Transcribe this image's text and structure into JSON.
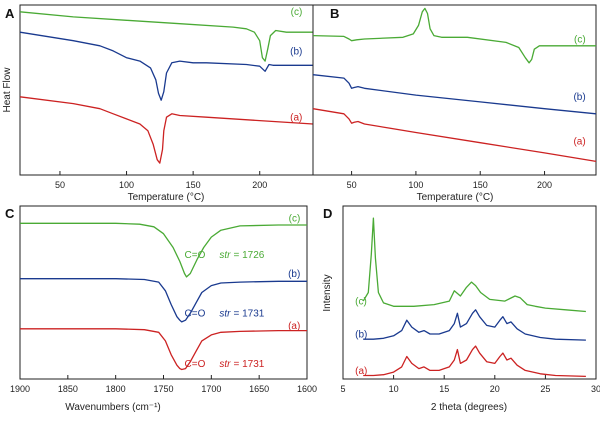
{
  "colors": {
    "a": "#cc2222",
    "b": "#1a3a8f",
    "c": "#4aaa35",
    "axis": "#222222"
  },
  "chart_data": [
    {
      "id": "A",
      "panel_label": "A",
      "type": "line",
      "xlabel": "Temperature (°C)",
      "ylabel": "Heat Flow",
      "xlim": [
        20,
        240
      ],
      "ylim": [
        0,
        10
      ],
      "xticks": [
        50,
        100,
        150,
        200
      ],
      "tick_labels": [
        "50",
        "100",
        "150",
        "200"
      ],
      "series": [
        {
          "name": "(c)",
          "color": "#4aaa35",
          "label_pos": [
            232,
            9.4
          ],
          "x": [
            20,
            60,
            100,
            140,
            180,
            190,
            196,
            200,
            202,
            204,
            206,
            208,
            212,
            220,
            240
          ],
          "y": [
            9.6,
            9.3,
            9.1,
            8.9,
            8.7,
            8.6,
            8.4,
            7.9,
            6.9,
            6.7,
            7.4,
            8.2,
            8.5,
            8.4,
            8.4
          ]
        },
        {
          "name": "(b)",
          "color": "#1a3a8f",
          "label_pos": [
            232,
            7.1
          ],
          "x": [
            20,
            60,
            80,
            90,
            100,
            110,
            118,
            122,
            124,
            126,
            128,
            130,
            134,
            140,
            150,
            160,
            190,
            200,
            204,
            207,
            210,
            220,
            240
          ],
          "y": [
            8.4,
            7.9,
            7.6,
            7.3,
            6.9,
            6.7,
            6.3,
            5.6,
            4.8,
            4.4,
            4.9,
            6.0,
            6.6,
            6.7,
            6.6,
            6.6,
            6.5,
            6.4,
            6.1,
            6.5,
            6.45,
            6.45,
            6.45
          ]
        },
        {
          "name": "(a)",
          "color": "#cc2222",
          "label_pos": [
            232,
            3.2
          ],
          "x": [
            20,
            60,
            80,
            90,
            100,
            110,
            116,
            120,
            123,
            125,
            127,
            128,
            130,
            134,
            140,
            160,
            200,
            240
          ],
          "y": [
            4.6,
            4.2,
            3.9,
            3.6,
            3.3,
            3.0,
            2.6,
            1.8,
            0.9,
            0.7,
            1.5,
            2.6,
            3.4,
            3.6,
            3.5,
            3.4,
            3.2,
            3.0
          ]
        }
      ]
    },
    {
      "id": "B",
      "panel_label": "B",
      "type": "line",
      "xlabel": "Temperature (°C)",
      "ylabel": "",
      "xlim": [
        20,
        240
      ],
      "ylim": [
        0,
        10
      ],
      "xticks": [
        50,
        100,
        150,
        200
      ],
      "tick_labels": [
        "50",
        "100",
        "150",
        "200"
      ],
      "series": [
        {
          "name": "(c)",
          "color": "#4aaa35",
          "label_pos": [
            232,
            7.8
          ],
          "x": [
            20,
            44,
            48,
            50,
            54,
            60,
            90,
            98,
            102,
            105,
            107,
            109,
            111,
            114,
            120,
            140,
            170,
            180,
            185,
            188,
            190,
            192,
            196,
            210,
            240
          ],
          "y": [
            8.2,
            8.15,
            8.0,
            7.9,
            7.95,
            8.0,
            8.1,
            8.3,
            8.8,
            9.6,
            9.8,
            9.5,
            8.6,
            8.2,
            8.1,
            8.1,
            7.8,
            7.5,
            6.9,
            6.6,
            6.8,
            7.4,
            7.6,
            7.6,
            7.6
          ]
        },
        {
          "name": "(b)",
          "color": "#1a3a8f",
          "label_pos": [
            232,
            4.4
          ],
          "x": [
            20,
            44,
            48,
            50,
            52,
            55,
            60,
            100,
            150,
            200,
            240
          ],
          "y": [
            5.9,
            5.7,
            5.4,
            5.1,
            5.15,
            5.2,
            5.1,
            4.7,
            4.3,
            3.9,
            3.6
          ]
        },
        {
          "name": "(a)",
          "color": "#cc2222",
          "label_pos": [
            232,
            1.8
          ],
          "x": [
            20,
            44,
            48,
            50,
            52,
            55,
            60,
            100,
            150,
            200,
            240
          ],
          "y": [
            3.9,
            3.6,
            3.3,
            3.05,
            3.1,
            3.15,
            3.0,
            2.5,
            1.9,
            1.3,
            0.8
          ]
        }
      ]
    },
    {
      "id": "C",
      "panel_label": "C",
      "type": "line",
      "xlabel": "Wavenumbers (cm⁻¹)",
      "ylabel": "",
      "xlim": [
        1900,
        1600
      ],
      "ylim": [
        0,
        10
      ],
      "xticks": [
        1900,
        1850,
        1800,
        1750,
        1700,
        1650,
        1600
      ],
      "tick_labels": [
        "1900",
        "1850",
        "1800",
        "1750",
        "1700",
        "1650",
        "1600"
      ],
      "series": [
        {
          "name": "(c)",
          "color": "#4aaa35",
          "label_pos": [
            1607,
            9.1
          ],
          "annotation": {
            "prefix": "C=O",
            "str": "str",
            "value": "= 1726",
            "pos": [
              1728,
              7.0
            ]
          },
          "x": [
            1900,
            1800,
            1775,
            1760,
            1750,
            1740,
            1733,
            1728,
            1726,
            1722,
            1715,
            1708,
            1700,
            1690,
            1670,
            1630,
            1600
          ],
          "y": [
            9.0,
            9.0,
            8.95,
            8.8,
            8.4,
            7.6,
            6.8,
            6.1,
            5.9,
            6.1,
            6.9,
            7.6,
            8.2,
            8.6,
            8.85,
            8.9,
            8.9
          ]
        },
        {
          "name": "(b)",
          "color": "#1a3a8f",
          "label_pos": [
            1607,
            5.9
          ],
          "annotation": {
            "prefix": "C=O",
            "str": "str",
            "value": "= 1731",
            "pos": [
              1728,
              3.6
            ]
          },
          "x": [
            1900,
            1800,
            1770,
            1755,
            1748,
            1742,
            1736,
            1733,
            1731,
            1727,
            1722,
            1716,
            1710,
            1700,
            1690,
            1670,
            1630,
            1600
          ],
          "y": [
            5.8,
            5.8,
            5.75,
            5.6,
            5.1,
            4.3,
            3.6,
            3.4,
            3.3,
            3.4,
            3.8,
            4.4,
            5.0,
            5.4,
            5.55,
            5.6,
            5.65,
            5.65
          ]
        },
        {
          "name": "(a)",
          "color": "#cc2222",
          "label_pos": [
            1607,
            2.9
          ],
          "annotation": {
            "prefix": "C=O",
            "str": "str",
            "value": "= 1731",
            "pos": [
              1728,
              0.7
            ]
          },
          "x": [
            1900,
            1800,
            1770,
            1755,
            1748,
            1742,
            1736,
            1733,
            1731,
            1727,
            1722,
            1716,
            1710,
            1700,
            1690,
            1670,
            1630,
            1600
          ],
          "y": [
            2.9,
            2.9,
            2.85,
            2.7,
            2.2,
            1.4,
            0.8,
            0.6,
            0.55,
            0.6,
            1.0,
            1.6,
            2.2,
            2.55,
            2.7,
            2.75,
            2.8,
            2.8
          ]
        }
      ]
    },
    {
      "id": "D",
      "panel_label": "D",
      "type": "line",
      "xlabel": "2 theta (degrees)",
      "ylabel": "Intensity",
      "xlim": [
        5,
        30
      ],
      "ylim": [
        0,
        10
      ],
      "xticks": [
        5,
        10,
        15,
        20,
        25,
        30
      ],
      "tick_labels": [
        "5",
        "10",
        "15",
        "20",
        "25",
        "30"
      ],
      "series": [
        {
          "name": "(c)",
          "color": "#4aaa35",
          "label_pos": [
            6.2,
            4.3
          ],
          "x": [
            7.0,
            7.5,
            7.8,
            8.0,
            8.2,
            8.5,
            9.0,
            10,
            12,
            14,
            15.5,
            16.0,
            16.6,
            17.2,
            17.7,
            18.1,
            18.6,
            19.5,
            21,
            22.0,
            22.5,
            23.2,
            24,
            25,
            27,
            29
          ],
          "y": [
            4.5,
            5.0,
            7.2,
            9.3,
            7.0,
            5.0,
            4.4,
            4.2,
            4.2,
            4.3,
            4.5,
            5.1,
            4.8,
            5.3,
            5.6,
            5.4,
            5.0,
            4.6,
            4.5,
            4.8,
            4.7,
            4.3,
            4.2,
            4.1,
            4.0,
            3.9
          ]
        },
        {
          "name": "(b)",
          "color": "#1a3a8f",
          "label_pos": [
            6.2,
            2.4
          ],
          "x": [
            7.0,
            8,
            9,
            10,
            10.8,
            11.3,
            11.8,
            12.5,
            13.0,
            13.6,
            14.5,
            15.5,
            16.0,
            16.3,
            16.6,
            17.2,
            17.8,
            18.1,
            18.5,
            19.2,
            20.0,
            20.5,
            20.8,
            21.2,
            21.6,
            22.2,
            23,
            24.5,
            26,
            29
          ],
          "y": [
            2.3,
            2.3,
            2.35,
            2.5,
            2.8,
            3.4,
            3.0,
            2.7,
            2.8,
            2.6,
            2.6,
            2.8,
            3.2,
            3.8,
            3.0,
            3.2,
            3.8,
            4.0,
            3.6,
            3.1,
            3.0,
            3.4,
            3.6,
            3.2,
            3.3,
            2.9,
            2.6,
            2.4,
            2.3,
            2.25
          ]
        },
        {
          "name": "(a)",
          "color": "#cc2222",
          "label_pos": [
            6.2,
            0.3
          ],
          "x": [
            7.0,
            8,
            9,
            10,
            10.8,
            11.3,
            11.8,
            12.5,
            13.0,
            13.6,
            14.5,
            15.5,
            16.0,
            16.3,
            16.6,
            17.2,
            17.8,
            18.1,
            18.5,
            19.2,
            20.0,
            20.5,
            20.8,
            21.2,
            21.6,
            22.2,
            23,
            24.5,
            26,
            29
          ],
          "y": [
            0.2,
            0.2,
            0.25,
            0.4,
            0.7,
            1.3,
            0.9,
            0.6,
            0.7,
            0.5,
            0.5,
            0.7,
            1.1,
            1.7,
            0.9,
            1.1,
            1.7,
            1.9,
            1.5,
            1.0,
            0.9,
            1.3,
            1.5,
            1.1,
            1.2,
            0.8,
            0.5,
            0.3,
            0.2,
            0.15
          ]
        }
      ]
    }
  ]
}
